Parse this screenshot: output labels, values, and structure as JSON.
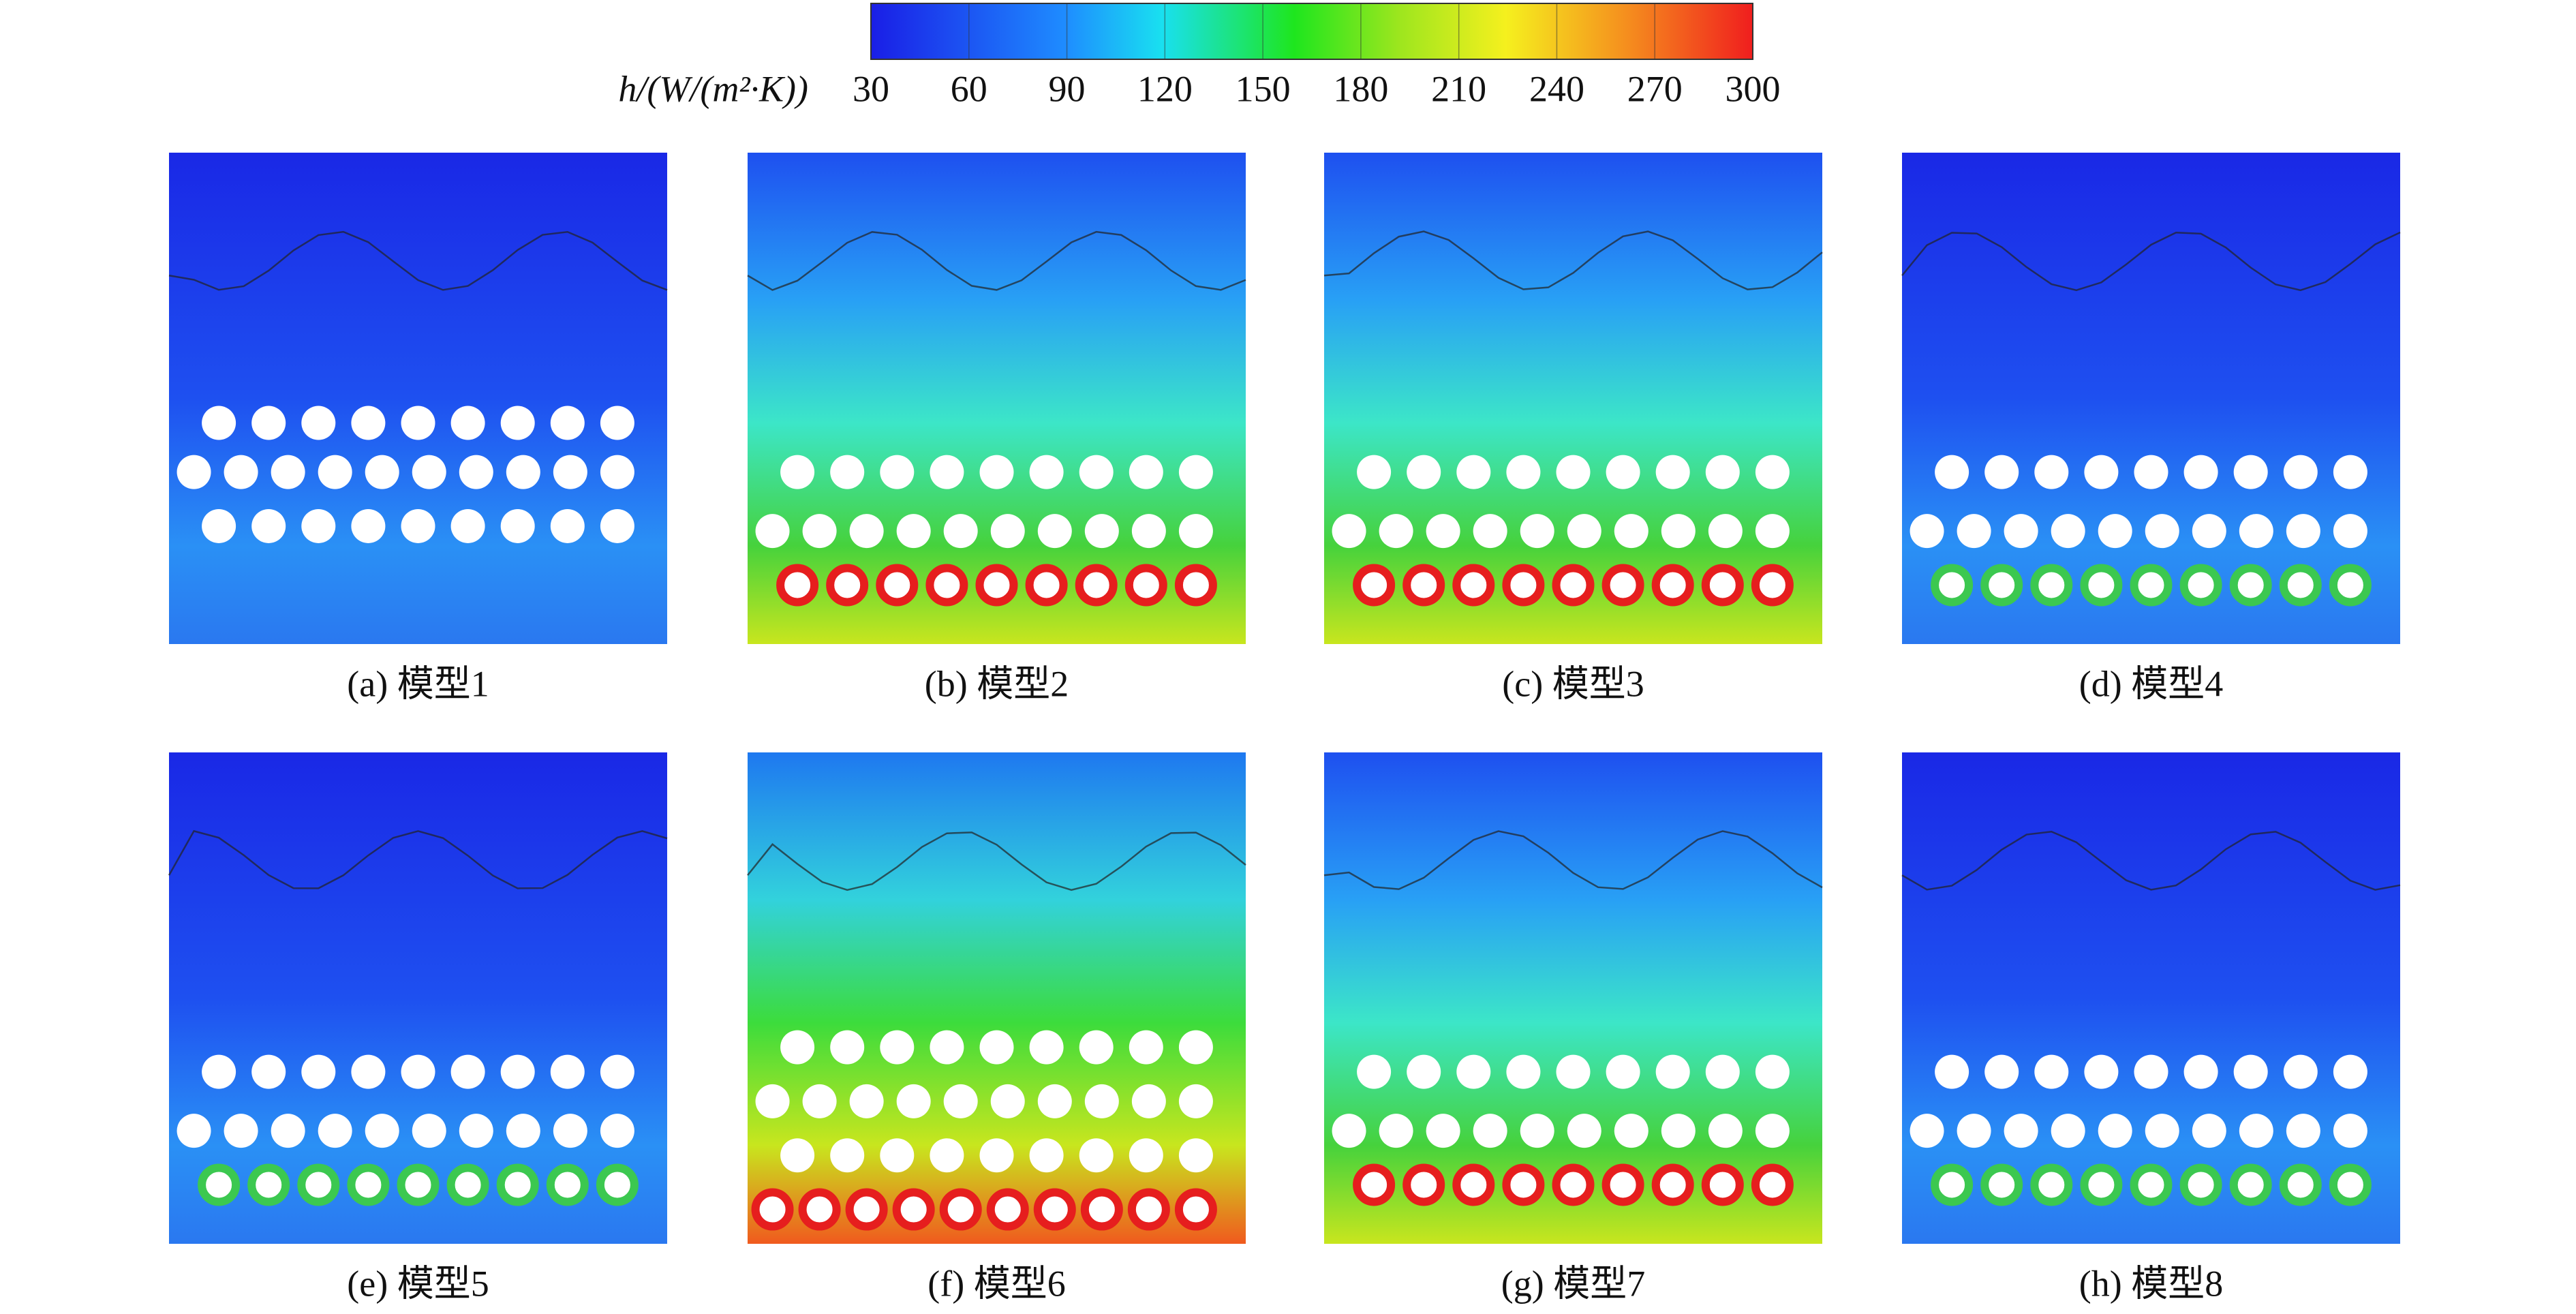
{
  "colorbar": {
    "label": "h/(W/(m²·K))",
    "range": [
      30,
      300
    ],
    "ticks": [
      30,
      60,
      90,
      120,
      150,
      180,
      210,
      240,
      270,
      300
    ]
  },
  "panels": [
    {
      "caption": "(a) 模型1"
    },
    {
      "caption": "(b) 模型2"
    },
    {
      "caption": "(c) 模型3"
    },
    {
      "caption": "(d) 模型4"
    },
    {
      "caption": "(e) 模型5"
    },
    {
      "caption": "(f) 模型6"
    },
    {
      "caption": "(g) 模型7"
    },
    {
      "caption": "(h) 模型8"
    }
  ]
}
